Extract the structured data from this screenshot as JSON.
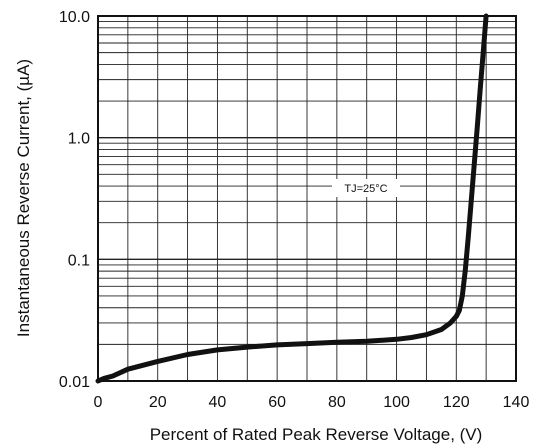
{
  "chart_data": {
    "type": "line",
    "title": "",
    "xlabel": "Percent of  Rated Peak Reverse Voltage, (V)",
    "ylabel": "Instantaneous Reverse Current, (µA)",
    "xlim": [
      0,
      140
    ],
    "ylim": [
      0.01,
      10.0
    ],
    "yscale": "log",
    "grid": true,
    "x_ticks": [
      "0",
      "20",
      "40",
      "60",
      "80",
      "100",
      "120",
      "140"
    ],
    "y_ticks": [
      "10.0",
      "1.0",
      "0.1",
      "0.01"
    ],
    "annotation": "TJ=25°C",
    "series": [
      {
        "x": [
          0,
          2,
          5,
          10,
          20,
          30,
          40,
          50,
          60,
          70,
          80,
          90,
          100,
          105,
          110,
          115,
          118,
          120,
          121,
          122,
          123,
          124,
          125,
          126,
          127,
          128,
          129,
          130
        ],
        "y": [
          0.01,
          0.0105,
          0.011,
          0.0125,
          0.0145,
          0.0165,
          0.018,
          0.019,
          0.0198,
          0.0203,
          0.0208,
          0.0212,
          0.022,
          0.0228,
          0.024,
          0.0265,
          0.03,
          0.034,
          0.038,
          0.05,
          0.08,
          0.15,
          0.3,
          0.6,
          1.2,
          2.5,
          5.0,
          10.0
        ]
      }
    ],
    "line_color": "#111111"
  }
}
